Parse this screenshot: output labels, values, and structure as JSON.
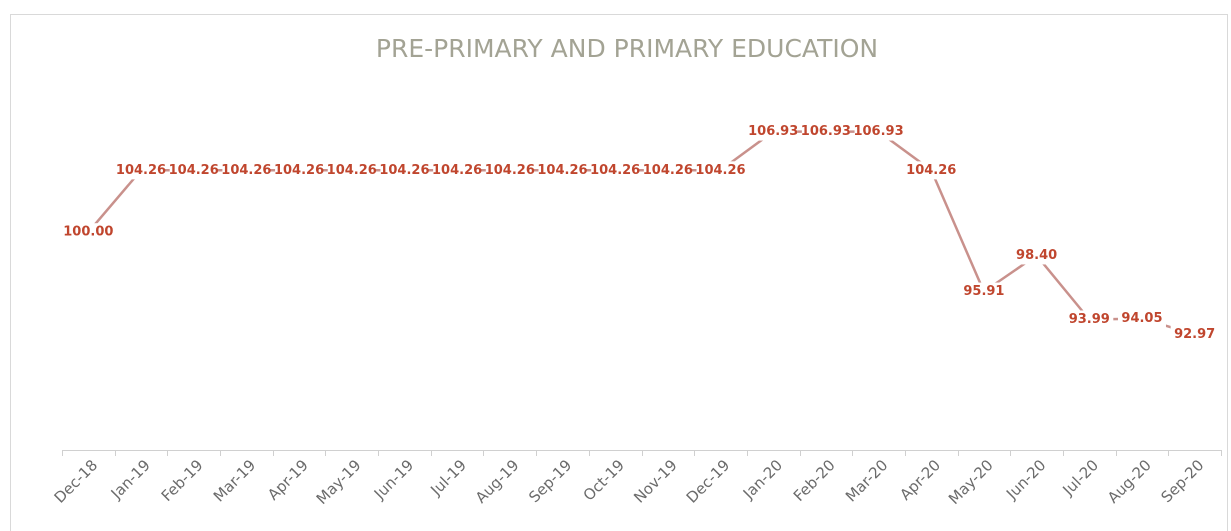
{
  "chart_data": {
    "type": "line",
    "title": "PRE-PRIMARY AND PRIMARY EDUCATION",
    "categories": [
      "Dec-18",
      "Jan-19",
      "Feb-19",
      "Mar-19",
      "Apr-19",
      "May-19",
      "Jun-19",
      "Jul-19",
      "Aug-19",
      "Sep-19",
      "Oct-19",
      "Nov-19",
      "Dec-19",
      "Jan-20",
      "Feb-20",
      "Mar-20",
      "Apr-20",
      "May-20",
      "Jun-20",
      "Jul-20",
      "Aug-20",
      "Sep-20"
    ],
    "values": [
      100,
      104.26,
      104.26,
      104.26,
      104.26,
      104.26,
      104.26,
      104.26,
      104.26,
      104.26,
      104.26,
      104.26,
      104.26,
      106.93,
      106.93,
      106.93,
      104.26,
      95.91,
      98.4,
      93.99,
      94.05,
      92.97
    ],
    "value_labels": [
      "100.00",
      "104.26",
      "104.26",
      "104.26",
      "104.26",
      "104.26",
      "104.26",
      "104.26",
      "104.26",
      "104.26",
      "104.26",
      "104.26",
      "104.26",
      "106.93",
      "106.93",
      "106.93",
      "104.26",
      "95.91",
      "98.40",
      "93.99",
      "94.05",
      "92.97"
    ],
    "color": "#c9918c",
    "ylim": [
      85,
      110
    ]
  }
}
